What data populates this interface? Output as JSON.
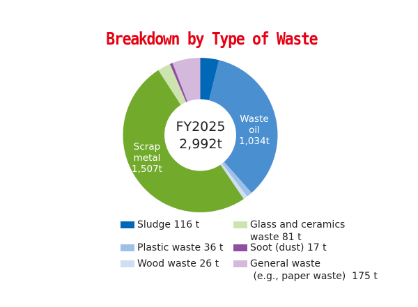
{
  "title": "Breakdown by Type of Waste",
  "center": {
    "line1": "FY2025",
    "line2": "2,992t"
  },
  "segment_labels": {
    "waste_oil": {
      "l1": "Waste",
      "l2": "oil",
      "l3": "1,034t"
    },
    "scrap_metal": {
      "l1": "Scrap",
      "l2": "metal",
      "l3": "1,507t"
    }
  },
  "legend": [
    {
      "label": "Sludge  116 t",
      "color": "#0068b7"
    },
    {
      "label": "Plastic waste  36 t",
      "color": "#9fc0e6"
    },
    {
      "label": "Wood waste  26 t",
      "color": "#cfdff3"
    },
    {
      "label1": "Glass and ceramics",
      "label2": "waste  81 t",
      "color": "#cde3b0"
    },
    {
      "label": "Soot (dust)  17 t",
      "color": "#8e4fa0"
    },
    {
      "label1": "General waste",
      "label2": " (e.g., paper waste)  175 t",
      "color": "#d5b9dc"
    }
  ],
  "chart_data": {
    "type": "pie",
    "subtype": "donut",
    "title": "Breakdown by Type of Waste",
    "center_label": "FY2025 2,992t",
    "unit": "t",
    "total": 2992,
    "categories": [
      "Sludge",
      "Waste oil",
      "Plastic waste",
      "Wood waste",
      "Scrap metal",
      "Glass and ceramics waste",
      "Soot (dust)",
      "General waste (e.g., paper waste)"
    ],
    "values": [
      116,
      1034,
      36,
      26,
      1507,
      81,
      17,
      175
    ],
    "colors": [
      "#0068b7",
      "#4a8fd0",
      "#9fc0e6",
      "#cfdff3",
      "#72ab2c",
      "#cde3b0",
      "#8e4fa0",
      "#d5b9dc"
    ],
    "start_angle": "12 o'clock, clockwise",
    "legend_position": "bottom"
  }
}
